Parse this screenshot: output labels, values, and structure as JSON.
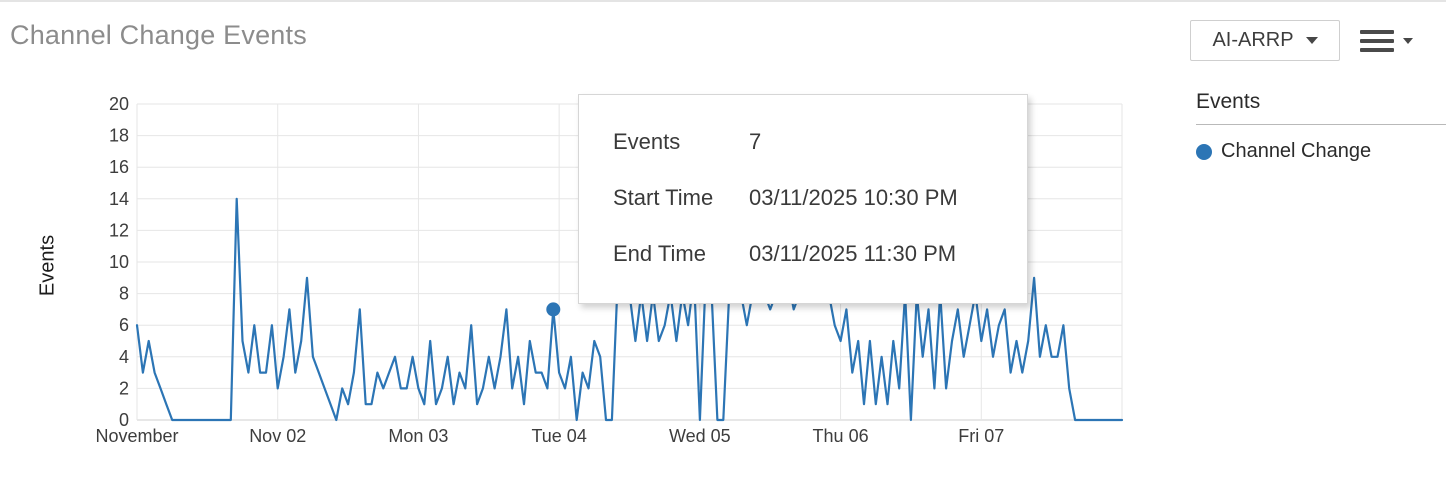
{
  "header": {
    "title": "Channel Change Events"
  },
  "controls": {
    "series_dropdown": {
      "label": "AI-ARRP"
    },
    "menu_button": {
      "icon": "hamburger-menu"
    }
  },
  "legend": {
    "title": "Events",
    "items": [
      {
        "label": "Channel Change",
        "color": "#2c75b5"
      }
    ]
  },
  "tooltip": {
    "rows": [
      {
        "label": "Events",
        "value": "7"
      },
      {
        "label": "Start Time",
        "value": "03/11/2025 10:30 PM"
      },
      {
        "label": "End Time",
        "value": "03/11/2025 11:30 PM"
      }
    ]
  },
  "chart_data": {
    "type": "line",
    "title": "Channel Change Events",
    "ylabel": "Events",
    "xlabel": "",
    "ylim": [
      0,
      20
    ],
    "yticks": [
      0,
      2,
      4,
      6,
      8,
      10,
      12,
      14,
      16,
      18,
      20
    ],
    "x_tick_labels": [
      "November",
      "Nov 02",
      "Mon 03",
      "Tue 04",
      "Wed 05",
      "Thu 06",
      "Fri 07"
    ],
    "x_days": 7,
    "points_per_day": 24,
    "grid": true,
    "legend_position": "right",
    "line_color": "#2c75b5",
    "grid_color": "#e6e6e6",
    "axis_line_color": "#cfcfcf",
    "tick_label_color": "#3d3d3d",
    "series": [
      {
        "name": "Channel Change",
        "color": "#2c75b5",
        "values": [
          6,
          3,
          5,
          3,
          2,
          1,
          0,
          0,
          0,
          0,
          0,
          0,
          0,
          0,
          0,
          0,
          0,
          14,
          5,
          3,
          6,
          3,
          3,
          6,
          2,
          4,
          7,
          3,
          5,
          9,
          4,
          3,
          2,
          1,
          0,
          2,
          1,
          3,
          7,
          1,
          1,
          3,
          2,
          3,
          4,
          2,
          2,
          4,
          2,
          1,
          5,
          1,
          2,
          4,
          1,
          3,
          2,
          6,
          1,
          2,
          4,
          2,
          4,
          7,
          2,
          4,
          1,
          5,
          3,
          3,
          2,
          7,
          3,
          2,
          4,
          0,
          3,
          2,
          5,
          4,
          0,
          0,
          9,
          10,
          8,
          5,
          8,
          5,
          8,
          5,
          6,
          8,
          5,
          8,
          6,
          9,
          0,
          9,
          8,
          0,
          0,
          8,
          9,
          8,
          6,
          8,
          9,
          8,
          7,
          8,
          8,
          9,
          7,
          8,
          9,
          8,
          8,
          9,
          8,
          6,
          5,
          7,
          3,
          5,
          1,
          5,
          1,
          4,
          1,
          5,
          2,
          8,
          0,
          8,
          4,
          7,
          2,
          8,
          2,
          5,
          7,
          4,
          6,
          8,
          5,
          7,
          4,
          6,
          7,
          3,
          5,
          3,
          5,
          9,
          4,
          6,
          4,
          4,
          6,
          2,
          0,
          0,
          0,
          0,
          0,
          0,
          0,
          0,
          0
        ]
      }
    ],
    "marked_point": {
      "index": 71,
      "value": 7
    }
  }
}
